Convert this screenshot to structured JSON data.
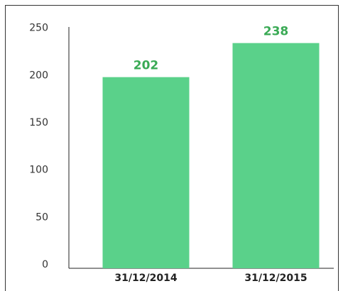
{
  "chart_data": {
    "type": "bar",
    "categories": [
      "31/12/2014",
      "31/12/2015"
    ],
    "values": [
      202,
      238
    ],
    "color": "#5ad18a",
    "ylim": [
      0,
      255
    ],
    "yticks": [
      0,
      50,
      100,
      150,
      200,
      250
    ],
    "grid": false
  }
}
